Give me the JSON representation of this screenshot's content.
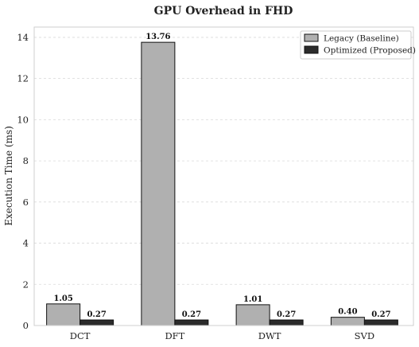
{
  "chart_data": {
    "type": "bar",
    "title": "GPU Overhead in FHD",
    "xlabel": "",
    "ylabel": "Execution Time (ms)",
    "categories": [
      "DCT",
      "DFT",
      "DWT",
      "SVD"
    ],
    "ylim": [
      0,
      14.5
    ],
    "yticks": [
      0,
      2,
      4,
      6,
      8,
      10,
      12,
      14
    ],
    "grid": true,
    "legend_position": "top-right",
    "series": [
      {
        "name": "Legacy (Baseline)",
        "values": [
          1.05,
          13.76,
          1.01,
          0.4
        ],
        "color": "#b0b0b0",
        "labels": [
          "1.05",
          "13.76",
          "1.01",
          "0.40"
        ]
      },
      {
        "name": "Optimized (Proposed)",
        "values": [
          0.27,
          0.27,
          0.27,
          0.27
        ],
        "color": "#2b2b2b",
        "labels": [
          "0.27",
          "0.27",
          "0.27",
          "0.27"
        ]
      }
    ]
  }
}
